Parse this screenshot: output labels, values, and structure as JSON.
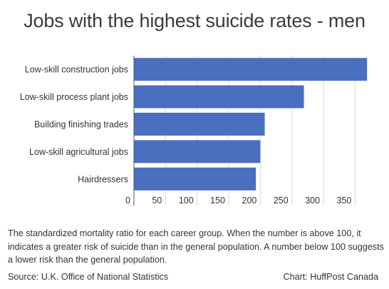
{
  "chart_data": {
    "type": "bar",
    "orientation": "horizontal",
    "title": "Jobs with the highest suicide rates - men",
    "categories": [
      "Low-skill construction jobs",
      "Low-skill process plant jobs",
      "Building finishing trades",
      "Low-skill agricultural jobs",
      "Hairdressers"
    ],
    "values": [
      369,
      269,
      207,
      200,
      193
    ],
    "xlim": [
      0,
      380
    ],
    "xticks": [
      0,
      50,
      100,
      150,
      200,
      250,
      300,
      350
    ],
    "grid": true,
    "bar_color": "#4a6fbe"
  },
  "caption": "The standardized mortality ratio for each career group. When the number is above 100, it indicates a greater risk of suicide than in the general population. A number below 100 suggests a lower risk than the general population.",
  "source": "Source: U.K. Office of National Statistics",
  "credit": "Chart: HuffPost Canada"
}
